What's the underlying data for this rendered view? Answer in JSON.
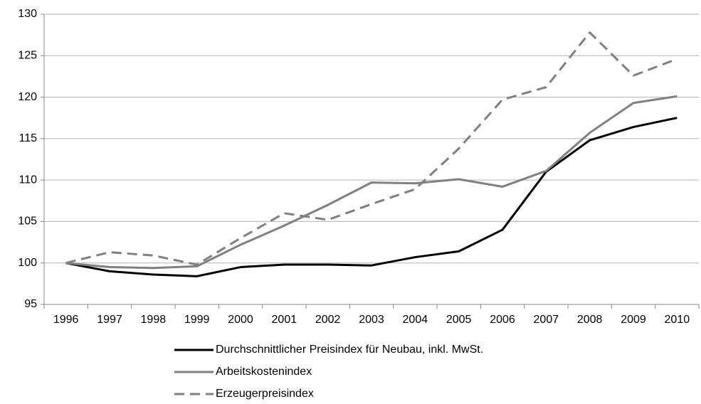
{
  "chart_data": {
    "type": "line",
    "categories": [
      "1996",
      "1997",
      "1998",
      "1999",
      "2000",
      "2001",
      "2002",
      "2003",
      "2004",
      "2005",
      "2006",
      "2007",
      "2008",
      "2009",
      "2010"
    ],
    "series": [
      {
        "name": "Durchschnittlicher Preisindex für Neubau, inkl. MwSt.",
        "color": "#000000",
        "dash": "solid",
        "values": [
          100,
          99.0,
          98.6,
          98.4,
          99.5,
          99.8,
          99.8,
          99.7,
          100.7,
          101.4,
          104.0,
          111.0,
          114.8,
          116.4,
          117.5
        ]
      },
      {
        "name": "Arbeitskostenindex",
        "color": "#808080",
        "dash": "solid",
        "values": [
          100,
          99.5,
          99.4,
          99.6,
          102.2,
          104.5,
          107.0,
          109.7,
          109.6,
          110.1,
          109.2,
          111.1,
          115.7,
          119.3,
          120.1
        ]
      },
      {
        "name": "Erzeugerpreisindex",
        "color": "#808080",
        "dash": "dashed",
        "values": [
          100,
          101.3,
          100.9,
          99.8,
          103.0,
          106.0,
          105.2,
          107.1,
          108.9,
          113.8,
          119.7,
          121.2,
          127.8,
          122.6,
          124.6
        ]
      }
    ],
    "ylim": [
      95,
      130
    ],
    "yticks": [
      95,
      100,
      105,
      110,
      115,
      120,
      125,
      130
    ],
    "grid": true,
    "legend": "bottom"
  }
}
